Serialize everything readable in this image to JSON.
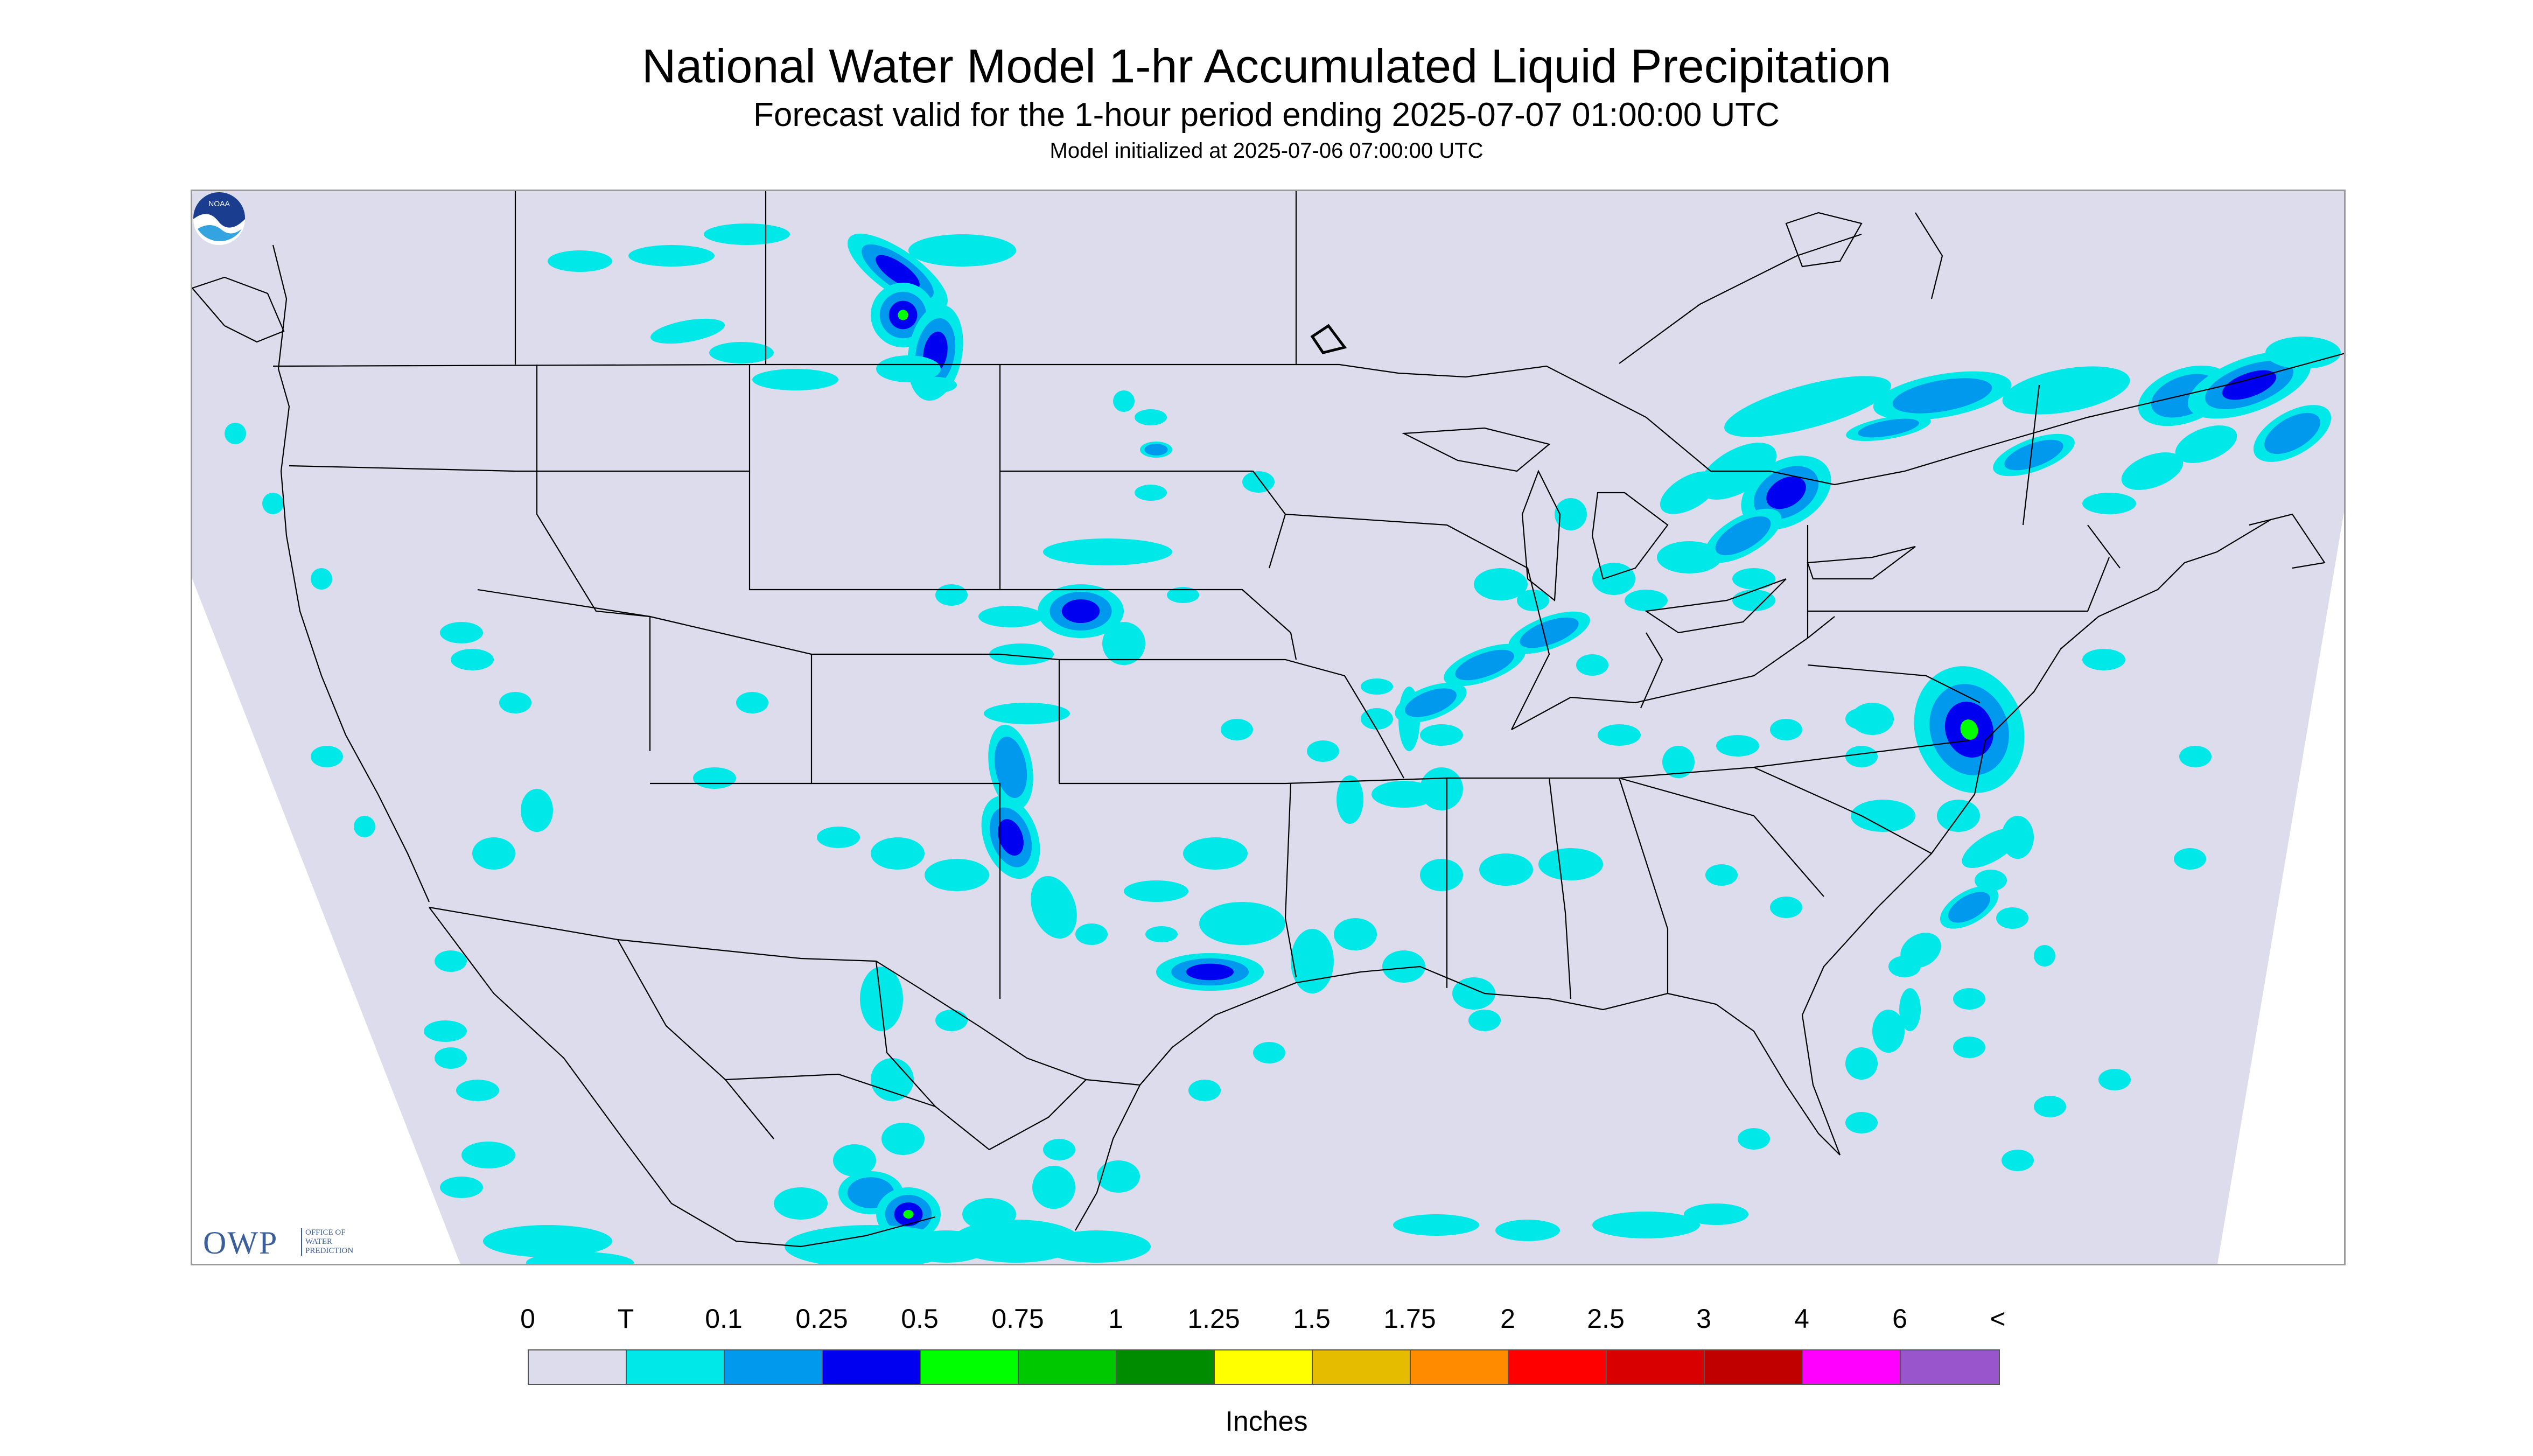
{
  "title": "National Water Model 1-hr Accumulated Liquid Precipitation",
  "subtitle": "Forecast valid for the 1-hour period ending 2025-07-07 01:00:00 UTC",
  "init_line": "Model initialized at 2025-07-06 07:00:00 UTC",
  "map": {
    "background_color": "#dcdcec",
    "boundary_color": "#000000",
    "region": "Continental United States with portions of Canada and Mexico"
  },
  "logos": {
    "owp": {
      "word": "OWP",
      "sub": "OFFICE OF WATER PREDICTION"
    },
    "noaa": {
      "word": "NOAA",
      "icon": "noaa-logo-icon"
    }
  },
  "legend": {
    "labels": [
      "0",
      "T",
      "0.1",
      "0.25",
      "0.5",
      "0.75",
      "1",
      "1.25",
      "1.5",
      "1.75",
      "2",
      "2.5",
      "3",
      "4",
      "6",
      "<"
    ],
    "colors": [
      "#dcdcec",
      "#00e8e8",
      "#0099ee",
      "#0000f0",
      "#00ff00",
      "#00c800",
      "#008c00",
      "#ffff00",
      "#e6bc00",
      "#ff8c00",
      "#ff0000",
      "#d80000",
      "#c00000",
      "#ff00ff",
      "#9955cc"
    ],
    "units": "Inches"
  }
}
